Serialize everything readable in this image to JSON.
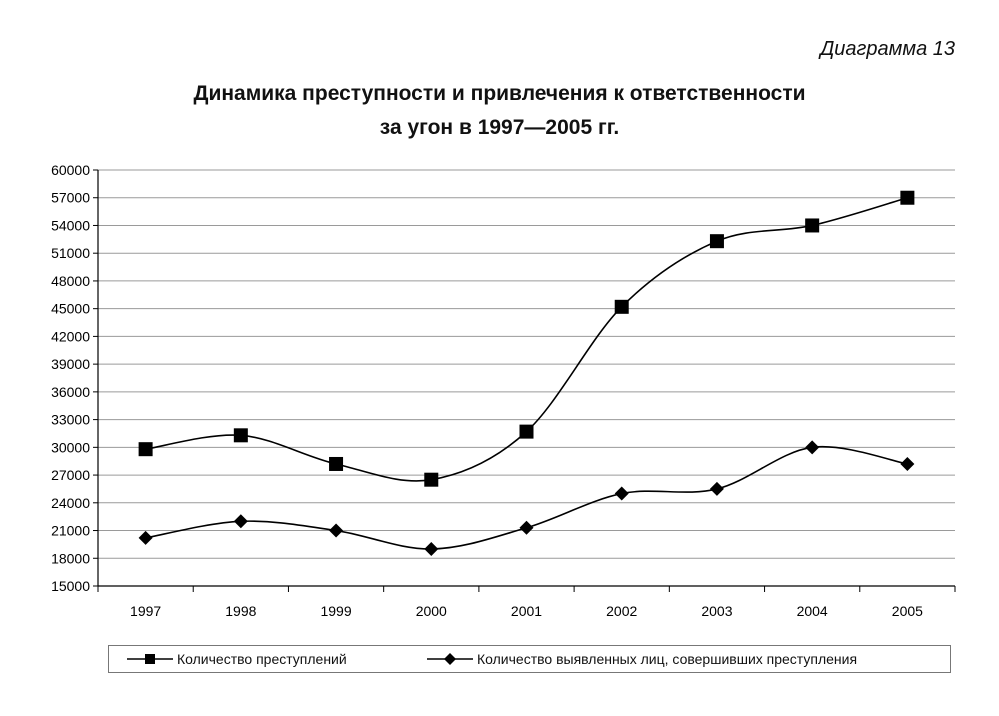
{
  "header": {
    "diagram_label": "Диаграмма 13",
    "title_line1": "Динамика преступности и привлечения к ответственности",
    "title_line2": "за угон в 1997—2005 гг."
  },
  "chart_data": {
    "type": "line",
    "title": "Динамика преступности и привлечения к ответственности за угон в 1997—2005 гг.",
    "categories": [
      "1997",
      "1998",
      "1999",
      "2000",
      "2001",
      "2002",
      "2003",
      "2004",
      "2005"
    ],
    "ylim": [
      15000,
      60000
    ],
    "yticks": [
      "15000",
      "18000",
      "21000",
      "24000",
      "27000",
      "30000",
      "33000",
      "36000",
      "39000",
      "42000",
      "45000",
      "48000",
      "51000",
      "54000",
      "57000",
      "60000"
    ],
    "grid": true,
    "legend": "bottom",
    "series": [
      {
        "name": "Количество преступлений",
        "marker": "square",
        "values": [
          29800,
          31300,
          28200,
          26500,
          31700,
          45200,
          52300,
          54000,
          57000
        ]
      },
      {
        "name": "Количество выявленных лиц, совершивших преступления",
        "marker": "diamond",
        "values": [
          20200,
          22000,
          21000,
          19000,
          21300,
          25000,
          25500,
          30000,
          28200
        ]
      }
    ],
    "colors": {
      "line": "#000000",
      "grid": "#9a9a9a"
    }
  }
}
